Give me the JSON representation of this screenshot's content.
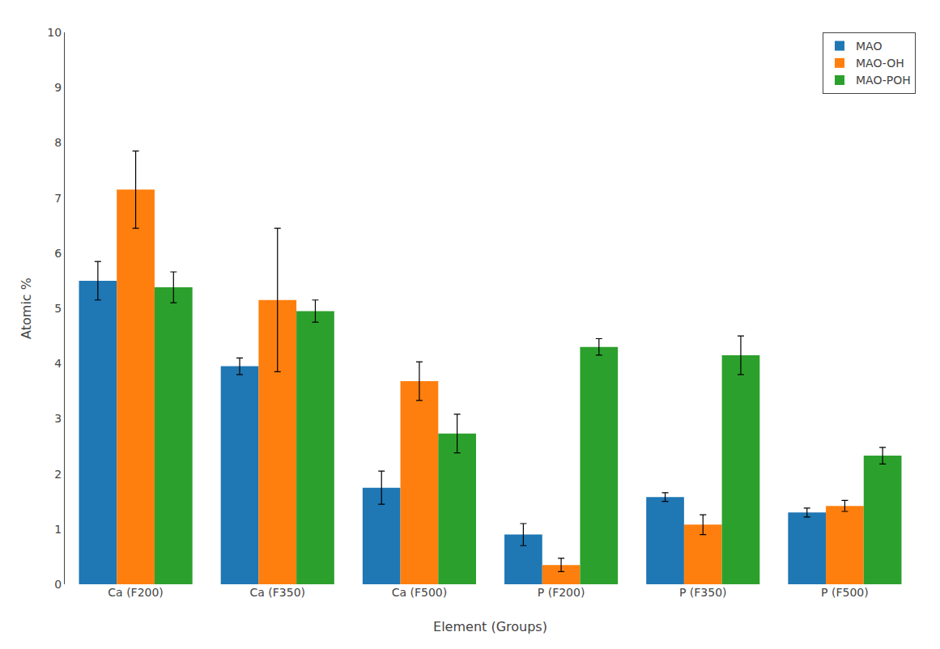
{
  "chart_data": {
    "type": "bar",
    "categories": [
      "Ca (F200)",
      "Ca (F350)",
      "Ca (F500)",
      "P (F200)",
      "P (F350)",
      "P (F500)"
    ],
    "series": [
      {
        "name": "MAO",
        "values": [
          5.5,
          3.95,
          1.75,
          0.9,
          1.58,
          1.3
        ],
        "errors": [
          0.35,
          0.15,
          0.3,
          0.2,
          0.08,
          0.08
        ]
      },
      {
        "name": "MAO-OH",
        "values": [
          7.15,
          5.15,
          3.68,
          0.35,
          1.08,
          1.42
        ],
        "errors": [
          0.7,
          1.3,
          0.35,
          0.12,
          0.18,
          0.1
        ]
      },
      {
        "name": "MAO-POH",
        "values": [
          5.38,
          4.95,
          2.73,
          4.3,
          4.15,
          2.33
        ],
        "errors": [
          0.28,
          0.2,
          0.35,
          0.15,
          0.35,
          0.15
        ]
      }
    ],
    "xlabel": "Element (Groups)",
    "ylabel": "Atomic %",
    "ylim": [
      0,
      10
    ],
    "yticks": [
      0,
      1,
      2,
      3,
      4,
      5,
      6,
      7,
      8,
      9,
      10
    ],
    "grid": false,
    "legend": "upper right"
  }
}
